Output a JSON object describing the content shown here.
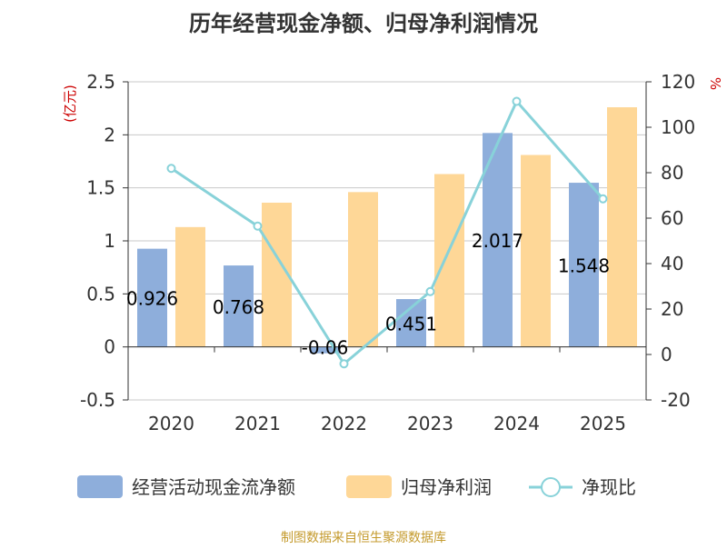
{
  "chart_data": {
    "type": "bar",
    "title": "历年经营现金净额、归母净利润情况",
    "categories": [
      "2020",
      "2021",
      "2022",
      "2023",
      "2024",
      "2025"
    ],
    "y_left": {
      "label": "(亿元)",
      "ylim": [
        -0.5,
        2.5
      ],
      "ticks": [
        "-0.5",
        "0",
        "0.5",
        "1",
        "1.5",
        "2",
        "2.5"
      ],
      "tick_values": [
        -0.5,
        0,
        0.5,
        1,
        1.5,
        2,
        2.5
      ]
    },
    "y_right": {
      "label": "%",
      "ylim": [
        -20,
        120
      ],
      "ticks": [
        "-20",
        "0",
        "20",
        "40",
        "60",
        "80",
        "100",
        "120"
      ],
      "tick_values": [
        -20,
        0,
        20,
        40,
        60,
        80,
        100,
        120
      ]
    },
    "series": [
      {
        "name": "经营活动现金流净额",
        "type": "bar",
        "axis": "left",
        "color": "#8eaedb",
        "values": [
          0.926,
          0.768,
          -0.06,
          0.451,
          2.017,
          1.548
        ],
        "data_labels": [
          "0.926",
          "0.768",
          "-0.06",
          "0.451",
          "2.017",
          "1.548"
        ]
      },
      {
        "name": "归母净利润",
        "type": "bar",
        "axis": "left",
        "color": "#fed797",
        "values": [
          1.13,
          1.36,
          1.46,
          1.63,
          1.81,
          2.26
        ]
      },
      {
        "name": "净现比",
        "type": "line",
        "axis": "right",
        "color": "#88d2d9",
        "values": [
          81.9,
          56.5,
          -4.1,
          27.7,
          111.4,
          68.5
        ]
      }
    ],
    "grid": true,
    "legend_position": "bottom",
    "source": "制图数据来自恒生聚源数据库"
  }
}
